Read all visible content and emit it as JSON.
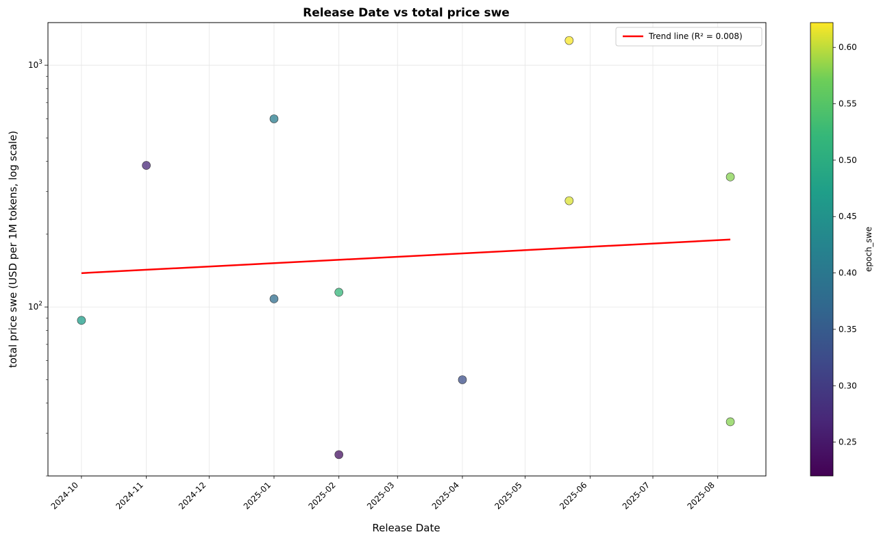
{
  "chart_data": {
    "type": "scatter",
    "title": "Release Date vs total price swe",
    "xlabel": "Release Date",
    "ylabel": "total price swe (USD per 1M tokens, log scale)",
    "y_scale": "log",
    "ylim": [
      20,
      1500
    ],
    "xlim": [
      "2024-09-15",
      "2025-08-24"
    ],
    "grid": true,
    "x_tick_labels": [
      "2024-10",
      "2024-11",
      "2024-12",
      "2025-01",
      "2025-02",
      "2025-03",
      "2025-04",
      "2025-05",
      "2025-06",
      "2025-07",
      "2025-08"
    ],
    "y_tick_labels": [
      {
        "base": "10",
        "exp": "2",
        "value": 100
      },
      {
        "base": "10",
        "exp": "3",
        "value": 1000
      }
    ],
    "points": [
      {
        "x": "2024-10-01",
        "y": 88,
        "c": 0.47
      },
      {
        "x": "2024-11-01",
        "y": 385,
        "c": 0.27
      },
      {
        "x": "2025-01-01",
        "y": 600,
        "c": 0.41
      },
      {
        "x": "2025-01-01",
        "y": 108,
        "c": 0.38
      },
      {
        "x": "2025-02-01",
        "y": 115,
        "c": 0.52
      },
      {
        "x": "2025-02-01",
        "y": 24.5,
        "c": 0.24
      },
      {
        "x": "2025-04-01",
        "y": 50,
        "c": 0.33
      },
      {
        "x": "2025-05-22",
        "y": 1265,
        "c": 0.62
      },
      {
        "x": "2025-05-22",
        "y": 275,
        "c": 0.61
      },
      {
        "x": "2025-08-07",
        "y": 345,
        "c": 0.58
      },
      {
        "x": "2025-08-07",
        "y": 33.5,
        "c": 0.58
      }
    ],
    "trend_line": {
      "x": [
        "2024-10-01",
        "2025-08-07"
      ],
      "y": [
        138,
        190
      ],
      "color": "#ff0000"
    },
    "legend": {
      "placement": "top-right",
      "entries": [
        "Trend line (R² = 0.008)"
      ]
    },
    "colorbar": {
      "label": "epoch_swe",
      "colormap": "viridis",
      "range": [
        0.22,
        0.622
      ],
      "ticks": [
        "0.25",
        "0.30",
        "0.35",
        "0.40",
        "0.45",
        "0.50",
        "0.55",
        "0.60"
      ]
    }
  }
}
